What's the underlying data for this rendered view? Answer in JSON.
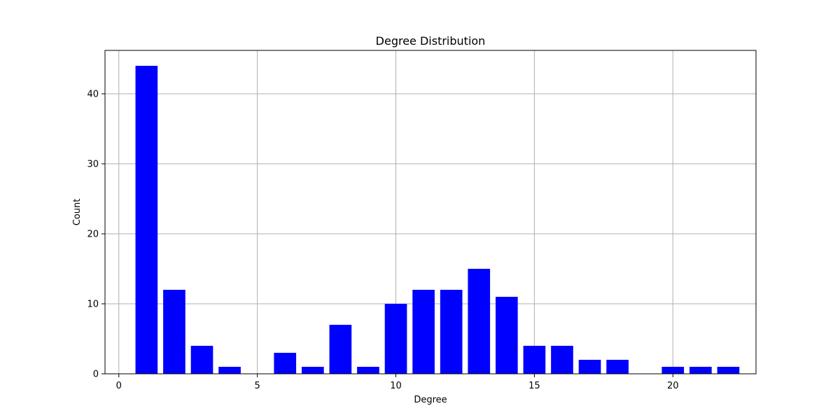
{
  "chart_data": {
    "type": "bar",
    "title": "Degree Distribution",
    "xlabel": "Degree",
    "ylabel": "Count",
    "x": [
      1,
      2,
      3,
      4,
      6,
      7,
      8,
      9,
      10,
      11,
      12,
      13,
      14,
      15,
      16,
      17,
      18,
      20,
      21,
      22
    ],
    "values": [
      44,
      12,
      4,
      1,
      3,
      1,
      7,
      1,
      10,
      12,
      12,
      15,
      11,
      4,
      4,
      2,
      2,
      1,
      1,
      1
    ],
    "xlim": [
      -0.5,
      23.0
    ],
    "ylim": [
      0,
      46.2
    ],
    "xticks": [
      0,
      5,
      10,
      15,
      20
    ],
    "yticks": [
      0,
      10,
      20,
      30,
      40
    ],
    "bar_width": 0.8,
    "grid": true,
    "bar_color": "#0000ff",
    "grid_color": "#b0b0b0"
  }
}
